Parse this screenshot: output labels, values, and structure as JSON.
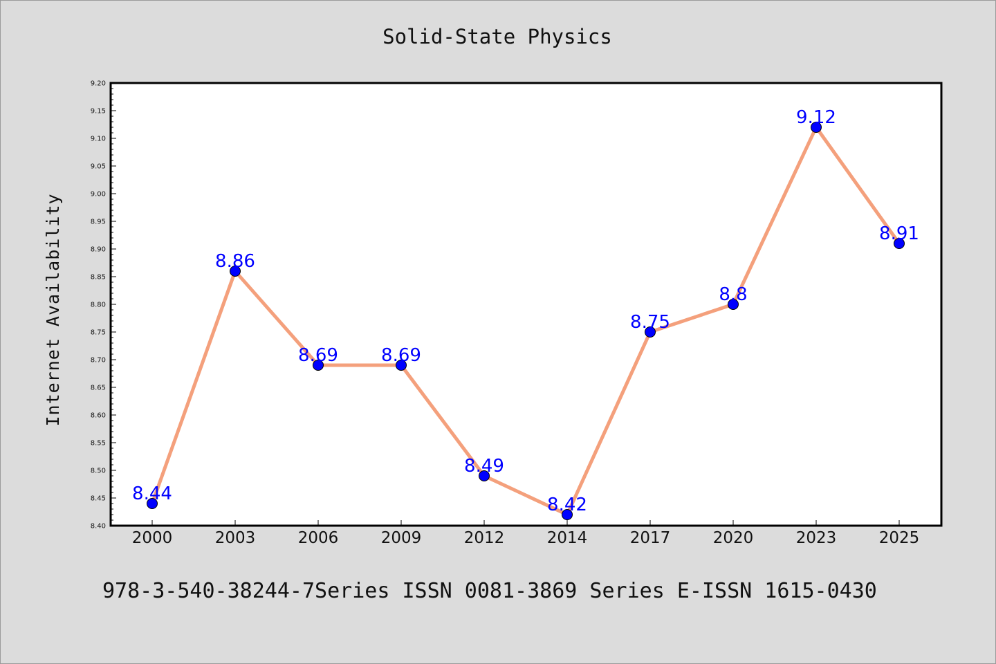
{
  "chart_data": {
    "type": "line",
    "title": "Solid-State Physics",
    "xlabel": "",
    "ylabel": "Internet Availability",
    "footer": "978-3-540-38244-7Series ISSN 0081-3869 Series E-ISSN 1615-0430",
    "categories": [
      "2000",
      "2003",
      "2006",
      "2009",
      "2012",
      "2014",
      "2017",
      "2020",
      "2023",
      "2025"
    ],
    "values": [
      8.44,
      8.86,
      8.69,
      8.69,
      8.49,
      8.42,
      8.75,
      8.8,
      9.12,
      8.91
    ],
    "data_labels": [
      "8.44",
      "8.86",
      "8.69",
      "8.69",
      "8.49",
      "8.42",
      "8.75",
      "8.8",
      "9.12",
      "8.91"
    ],
    "ylim": [
      8.4,
      9.2
    ],
    "yticks": [
      "8.40",
      "8.45",
      "8.50",
      "8.55",
      "8.60",
      "8.65",
      "8.70",
      "8.75",
      "8.80",
      "8.85",
      "8.90",
      "8.95",
      "9.00",
      "9.05",
      "9.10",
      "9.15",
      "9.20"
    ],
    "grid": false,
    "legend": "none",
    "colors": {
      "line": "#f4a07c",
      "marker": "#0000ff",
      "label": "#0000ff",
      "background": "#dcdcdc",
      "plot_area": "#ffffff"
    }
  }
}
